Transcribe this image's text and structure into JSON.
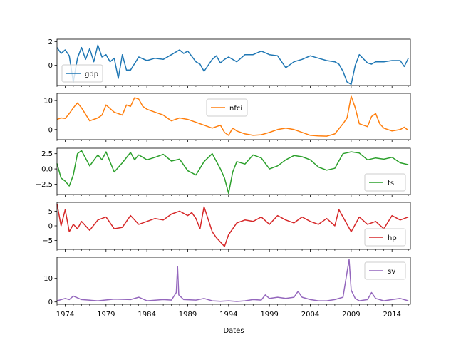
{
  "figure": {
    "xlabel": "Dates"
  },
  "chart_data": {
    "type": "line",
    "xlabel": "Dates",
    "xlim": [
      1973.0,
      2016.25
    ],
    "x_ticks": [
      1974,
      1979,
      1984,
      1989,
      1994,
      1999,
      2004,
      2009,
      2014
    ],
    "x_tick_labels": [
      "1974",
      "1979",
      "1984",
      "1989",
      "1994",
      "1999",
      "2004",
      "2009",
      "2014"
    ],
    "grid": false,
    "panels": [
      {
        "name": "gdp",
        "color": "#1f77b4",
        "legend_position": "lower-left",
        "ylim": [
          -1.7,
          2.2
        ],
        "y_ticks": [
          0,
          2
        ],
        "y_tick_labels": [
          "0",
          "2"
        ],
        "x": [
          1973.0,
          1973.5,
          1974.0,
          1974.5,
          1975.0,
          1975.5,
          1976.0,
          1976.5,
          1977.0,
          1977.5,
          1978.0,
          1978.5,
          1979.0,
          1979.5,
          1980.0,
          1980.5,
          1981.0,
          1981.5,
          1982.0,
          1983.0,
          1984.0,
          1985.0,
          1986.0,
          1987.0,
          1988.0,
          1988.5,
          1989.0,
          1990.0,
          1990.5,
          1991.0,
          1992.0,
          1992.5,
          1993.0,
          1993.5,
          1994.0,
          1995.0,
          1996.0,
          1997.0,
          1998.0,
          1999.0,
          2000.0,
          2001.0,
          2002.0,
          2003.0,
          2004.0,
          2005.0,
          2006.0,
          2007.0,
          2007.5,
          2008.0,
          2008.5,
          2009.0,
          2009.5,
          2010.0,
          2011.0,
          2011.5,
          2012.0,
          2013.0,
          2014.0,
          2015.0,
          2015.5,
          2016.0
        ],
        "values": [
          1.5,
          1.0,
          1.3,
          0.8,
          -1.4,
          0.6,
          1.5,
          0.5,
          1.4,
          0.3,
          1.7,
          0.7,
          0.9,
          0.3,
          0.6,
          -1.1,
          0.9,
          -0.4,
          -0.4,
          0.7,
          0.4,
          0.6,
          0.5,
          0.9,
          1.3,
          1.0,
          1.2,
          0.3,
          0.1,
          -0.5,
          0.5,
          0.8,
          0.2,
          0.5,
          0.7,
          0.3,
          0.9,
          0.9,
          1.2,
          0.9,
          0.8,
          -0.2,
          0.3,
          0.5,
          0.8,
          0.6,
          0.4,
          0.3,
          0.1,
          -0.5,
          -1.4,
          -1.6,
          0.0,
          0.9,
          0.2,
          0.1,
          0.3,
          0.3,
          0.4,
          0.4,
          -0.1,
          0.6
        ]
      },
      {
        "name": "nfci",
        "color": "#ff7f0e",
        "legend_position": "top-center",
        "ylim": [
          -3.5,
          12.5
        ],
        "y_ticks": [
          0,
          10
        ],
        "y_tick_labels": [
          "0",
          "10"
        ],
        "x": [
          1973.0,
          1973.5,
          1974.0,
          1974.5,
          1975.0,
          1975.5,
          1976.0,
          1977.0,
          1978.0,
          1978.5,
          1979.0,
          1980.0,
          1980.5,
          1981.0,
          1981.5,
          1982.0,
          1982.5,
          1983.0,
          1983.5,
          1984.0,
          1985.0,
          1985.5,
          1986.0,
          1987.0,
          1988.0,
          1989.0,
          1990.0,
          1991.0,
          1992.0,
          1993.0,
          1993.5,
          1994.0,
          1994.5,
          1995.0,
          1996.0,
          1997.0,
          1998.0,
          1999.0,
          2000.0,
          2001.0,
          2002.0,
          2003.0,
          2004.0,
          2005.0,
          2006.0,
          2007.0,
          2008.0,
          2008.5,
          2009.0,
          2009.5,
          2010.0,
          2011.0,
          2011.5,
          2012.0,
          2012.5,
          2013.0,
          2014.0,
          2015.0,
          2015.5,
          2016.0
        ],
        "values": [
          3.5,
          4.0,
          3.8,
          5.5,
          7.5,
          9.2,
          7.5,
          3.0,
          4.0,
          5.0,
          8.5,
          6.0,
          5.5,
          5.0,
          8.5,
          8.0,
          11.0,
          10.5,
          8.0,
          7.0,
          6.0,
          5.5,
          5.0,
          3.0,
          4.0,
          3.5,
          2.5,
          1.5,
          0.5,
          1.5,
          -1.0,
          -2.0,
          0.5,
          -0.5,
          -1.5,
          -2.0,
          -1.8,
          -1.0,
          0.0,
          0.5,
          0.0,
          -1.0,
          -2.0,
          -2.2,
          -2.3,
          -1.5,
          2.0,
          4.0,
          11.5,
          7.5,
          2.0,
          1.0,
          4.5,
          5.5,
          2.0,
          0.5,
          -0.5,
          0.0,
          0.8,
          -0.3
        ]
      },
      {
        "name": "ts",
        "color": "#2ca02c",
        "legend_position": "lower-right",
        "ylim": [
          -4.2,
          3.4
        ],
        "y_ticks": [
          -2.5,
          0.0,
          2.5
        ],
        "y_tick_labels": [
          "−2.5",
          "0.0",
          "2.5"
        ],
        "x": [
          1973.0,
          1973.5,
          1974.0,
          1974.5,
          1975.0,
          1975.5,
          1976.0,
          1977.0,
          1978.0,
          1978.5,
          1979.0,
          1980.0,
          1981.0,
          1982.0,
          1982.5,
          1983.0,
          1984.0,
          1985.0,
          1986.0,
          1987.0,
          1988.0,
          1989.0,
          1990.0,
          1991.0,
          1992.0,
          1993.0,
          1993.5,
          1994.0,
          1994.5,
          1995.0,
          1996.0,
          1997.0,
          1998.0,
          1999.0,
          2000.0,
          2001.0,
          2002.0,
          2003.0,
          2004.0,
          2005.0,
          2006.0,
          2007.0,
          2008.0,
          2009.0,
          2010.0,
          2011.0,
          2012.0,
          2013.0,
          2014.0,
          2015.0,
          2016.0
        ],
        "values": [
          0.9,
          -1.5,
          -2.0,
          -2.8,
          -1.0,
          2.5,
          3.0,
          0.5,
          2.3,
          1.5,
          2.8,
          -0.5,
          1.0,
          2.7,
          1.5,
          2.3,
          1.5,
          1.9,
          2.4,
          1.3,
          1.6,
          -0.3,
          -1.0,
          1.2,
          2.5,
          0.0,
          -1.5,
          -4.0,
          -0.5,
          1.2,
          0.8,
          2.3,
          1.8,
          0.0,
          0.5,
          1.5,
          2.2,
          2.0,
          1.5,
          0.3,
          -0.2,
          0.1,
          2.5,
          2.8,
          2.6,
          1.5,
          1.8,
          1.6,
          1.9,
          1.0,
          0.7
        ]
      },
      {
        "name": "hp",
        "color": "#d62728",
        "legend_position": "lower-right",
        "ylim": [
          -8.0,
          8.0
        ],
        "y_ticks": [
          -5,
          0,
          5
        ],
        "y_tick_labels": [
          "−5",
          "0",
          "5"
        ],
        "x": [
          1973.0,
          1973.5,
          1974.0,
          1974.5,
          1975.0,
          1975.5,
          1976.0,
          1977.0,
          1978.0,
          1979.0,
          1980.0,
          1981.0,
          1982.0,
          1983.0,
          1984.0,
          1985.0,
          1986.0,
          1987.0,
          1988.0,
          1989.0,
          1989.5,
          1990.0,
          1990.5,
          1991.0,
          1992.0,
          1992.5,
          1993.0,
          1993.5,
          1994.0,
          1995.0,
          1996.0,
          1997.0,
          1998.0,
          1999.0,
          2000.0,
          2001.0,
          2002.0,
          2003.0,
          2004.0,
          2005.0,
          2006.0,
          2007.0,
          2007.5,
          2008.0,
          2009.0,
          2010.0,
          2011.0,
          2012.0,
          2013.0,
          2014.0,
          2015.0,
          2016.0
        ],
        "values": [
          7.5,
          0.0,
          5.5,
          -2.0,
          0.5,
          -1.0,
          1.5,
          -1.5,
          2.0,
          3.0,
          -1.0,
          -0.5,
          3.5,
          0.5,
          1.5,
          2.5,
          2.0,
          4.0,
          5.0,
          3.5,
          4.5,
          2.5,
          -1.0,
          6.5,
          -2.0,
          -4.0,
          -5.5,
          -7.0,
          -3.0,
          1.0,
          2.0,
          1.5,
          3.0,
          0.5,
          3.5,
          2.0,
          1.0,
          3.0,
          1.5,
          0.5,
          2.5,
          0.0,
          5.5,
          3.0,
          -2.0,
          3.0,
          0.5,
          1.5,
          -1.0,
          3.5,
          2.0,
          3.0
        ]
      },
      {
        "name": "sv",
        "color": "#9467bd",
        "legend_position": "top-right",
        "ylim": [
          -1.0,
          19.0
        ],
        "y_ticks": [
          0,
          10
        ],
        "y_tick_labels": [
          "0",
          "10"
        ],
        "x": [
          1973.0,
          1974.0,
          1974.5,
          1975.0,
          1976.0,
          1978.0,
          1980.0,
          1982.0,
          1983.0,
          1984.0,
          1986.0,
          1987.0,
          1987.6,
          1987.75,
          1987.9,
          1988.5,
          1990.0,
          1991.0,
          1992.0,
          1993.0,
          1994.0,
          1995.0,
          1996.0,
          1997.0,
          1998.0,
          1998.5,
          1999.0,
          2000.0,
          2001.0,
          2002.0,
          2002.5,
          2003.0,
          2004.0,
          2005.0,
          2006.0,
          2007.0,
          2008.0,
          2008.75,
          2009.0,
          2009.5,
          2010.0,
          2011.0,
          2011.5,
          2012.0,
          2013.0,
          2014.0,
          2015.0,
          2016.0
        ],
        "values": [
          0.5,
          1.5,
          1.0,
          2.5,
          1.0,
          0.5,
          1.2,
          1.0,
          2.0,
          0.5,
          1.0,
          0.8,
          4.0,
          15.0,
          3.0,
          1.0,
          0.8,
          1.5,
          0.5,
          0.3,
          0.5,
          0.2,
          0.5,
          1.0,
          0.8,
          3.0,
          1.5,
          2.0,
          1.5,
          2.0,
          4.5,
          2.0,
          1.0,
          0.5,
          0.5,
          1.0,
          2.0,
          18.0,
          5.0,
          1.5,
          0.5,
          1.0,
          4.0,
          1.5,
          0.5,
          1.0,
          1.5,
          0.5
        ]
      }
    ]
  }
}
